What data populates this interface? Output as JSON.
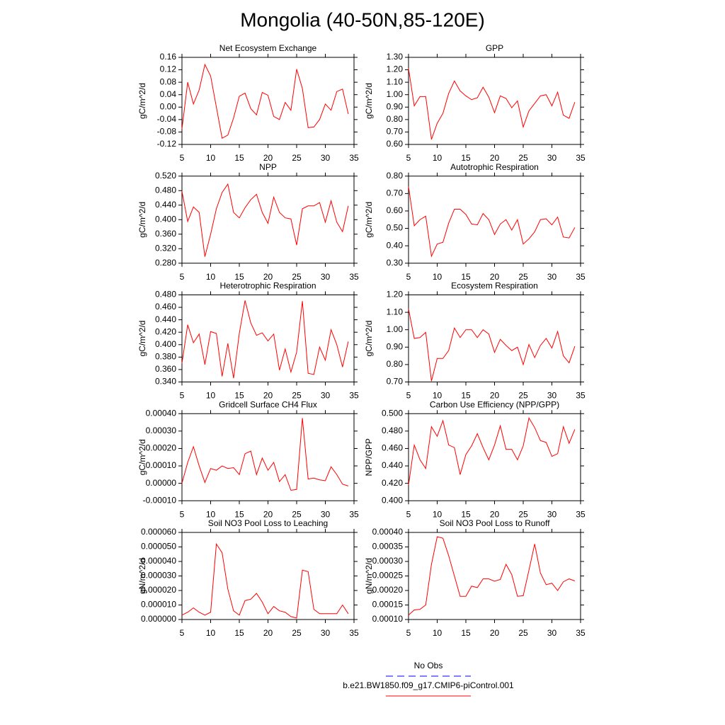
{
  "title": "Mongolia (40-50N,85-120E)",
  "legend": [
    {
      "name": "No Obs",
      "color": "#0000ff",
      "dash": true
    },
    {
      "name": "b.e21.BW1850.f09_g17.CMIP6-piControl.001",
      "color": "#ff0000",
      "dash": false
    }
  ],
  "chart_data": [
    {
      "type": "line",
      "title": "Net Ecosystem Exchange",
      "ylabel": "gC/m^2/d",
      "color": "#ff0000",
      "x": [
        5,
        6,
        7,
        8,
        9,
        10,
        11,
        12,
        13,
        14,
        15,
        16,
        17,
        18,
        19,
        20,
        21,
        22,
        23,
        24,
        25,
        26,
        27,
        28,
        29,
        30,
        31,
        32,
        33,
        34
      ],
      "values": [
        -0.07,
        0.08,
        0.01,
        0.055,
        0.137,
        0.1,
        0.0,
        -0.1,
        -0.09,
        -0.035,
        0.035,
        0.045,
        -0.005,
        -0.025,
        0.047,
        0.038,
        -0.03,
        -0.04,
        0.015,
        -0.01,
        0.122,
        0.06,
        -0.066,
        -0.064,
        -0.04,
        0.01,
        -0.01,
        0.05,
        0.058,
        -0.022
      ],
      "xlim": [
        5,
        35
      ],
      "xticks": [
        5,
        10,
        15,
        20,
        25,
        30,
        35
      ],
      "ylim": [
        -0.12,
        0.16
      ],
      "yticks": [
        -0.12,
        -0.08,
        -0.04,
        {
          "value": 0,
          "label": "0.00"
        },
        0.04,
        0.08,
        0.12,
        0.16
      ]
    },
    {
      "type": "line",
      "title": "GPP",
      "ylabel": "gC/m^2/d",
      "color": "#ff0000",
      "x": [
        5,
        6,
        7,
        8,
        9,
        10,
        11,
        12,
        13,
        14,
        15,
        16,
        17,
        18,
        19,
        20,
        21,
        22,
        23,
        24,
        25,
        26,
        27,
        28,
        29,
        30,
        31,
        32,
        33,
        34
      ],
      "values": [
        1.21,
        0.91,
        0.985,
        0.985,
        0.64,
        0.77,
        0.85,
        1.01,
        1.11,
        1.03,
        0.99,
        0.96,
        0.975,
        1.06,
        0.98,
        0.855,
        0.99,
        0.97,
        0.895,
        0.95,
        0.74,
        0.87,
        0.93,
        0.99,
        1.0,
        0.91,
        1.02,
        0.835,
        0.81,
        0.94
      ],
      "xlim": [
        5,
        35
      ],
      "xticks": [
        5,
        10,
        15,
        20,
        25,
        30,
        35
      ],
      "ylim": [
        0.6,
        1.3
      ],
      "yticks": [
        {
          "value": 0.6,
          "label": "0.60"
        },
        {
          "value": 0.7,
          "label": "0.70"
        },
        {
          "value": 0.8,
          "label": "0.80"
        },
        {
          "value": 0.9,
          "label": "0.90"
        },
        {
          "value": 1,
          "label": "1.00"
        },
        {
          "value": 1.1,
          "label": "1.10"
        },
        {
          "value": 1.2,
          "label": "1.20"
        },
        {
          "value": 1.3,
          "label": "1.30"
        }
      ]
    },
    {
      "type": "line",
      "title": "NPP",
      "ylabel": "gC/m^2/d",
      "color": "#ff0000",
      "x": [
        5,
        6,
        7,
        8,
        9,
        10,
        11,
        12,
        13,
        14,
        15,
        16,
        17,
        18,
        19,
        20,
        21,
        22,
        23,
        24,
        25,
        26,
        27,
        28,
        29,
        30,
        31,
        32,
        33,
        34
      ],
      "values": [
        0.478,
        0.395,
        0.435,
        0.42,
        0.298,
        0.36,
        0.43,
        0.475,
        0.498,
        0.42,
        0.405,
        0.433,
        0.455,
        0.47,
        0.42,
        0.39,
        0.462,
        0.42,
        0.405,
        0.402,
        0.33,
        0.43,
        0.438,
        0.438,
        0.447,
        0.393,
        0.452,
        0.393,
        0.367,
        0.438
      ],
      "xlim": [
        5,
        35
      ],
      "xticks": [
        5,
        10,
        15,
        20,
        25,
        30,
        35
      ],
      "ylim": [
        0.28,
        0.52
      ],
      "yticks": [
        {
          "value": 0.28,
          "label": "0.280"
        },
        {
          "value": 0.32,
          "label": "0.320"
        },
        {
          "value": 0.36,
          "label": "0.360"
        },
        {
          "value": 0.4,
          "label": "0.400"
        },
        {
          "value": 0.44,
          "label": "0.440"
        },
        {
          "value": 0.48,
          "label": "0.480"
        },
        {
          "value": 0.52,
          "label": "0.520"
        }
      ]
    },
    {
      "type": "line",
      "title": "Autotrophic Respiration",
      "ylabel": "gC/m^2/d",
      "color": "#ff0000",
      "x": [
        5,
        6,
        7,
        8,
        9,
        10,
        11,
        12,
        13,
        14,
        15,
        16,
        17,
        18,
        19,
        20,
        21,
        22,
        23,
        24,
        25,
        26,
        27,
        28,
        29,
        30,
        31,
        32,
        33,
        34
      ],
      "values": [
        0.74,
        0.515,
        0.55,
        0.57,
        0.34,
        0.41,
        0.42,
        0.53,
        0.61,
        0.61,
        0.58,
        0.525,
        0.52,
        0.585,
        0.55,
        0.465,
        0.525,
        0.55,
        0.49,
        0.55,
        0.41,
        0.44,
        0.48,
        0.55,
        0.555,
        0.52,
        0.565,
        0.45,
        0.445,
        0.505
      ],
      "xlim": [
        5,
        35
      ],
      "xticks": [
        5,
        10,
        15,
        20,
        25,
        30,
        35
      ],
      "ylim": [
        0.3,
        0.8
      ],
      "yticks": [
        {
          "value": 0.3,
          "label": "0.30"
        },
        {
          "value": 0.4,
          "label": "0.40"
        },
        {
          "value": 0.5,
          "label": "0.50"
        },
        {
          "value": 0.6,
          "label": "0.60"
        },
        {
          "value": 0.7,
          "label": "0.70"
        },
        {
          "value": 0.8,
          "label": "0.80"
        }
      ]
    },
    {
      "type": "line",
      "title": "Heterotrophic Respiration",
      "ylabel": "gC/m^2/d",
      "color": "#ff0000",
      "x": [
        5,
        6,
        7,
        8,
        9,
        10,
        11,
        12,
        13,
        14,
        15,
        16,
        17,
        18,
        19,
        20,
        21,
        22,
        23,
        24,
        25,
        26,
        27,
        28,
        29,
        30,
        31,
        32,
        33,
        34
      ],
      "values": [
        0.37,
        0.432,
        0.403,
        0.417,
        0.368,
        0.421,
        0.418,
        0.349,
        0.402,
        0.346,
        0.418,
        0.471,
        0.435,
        0.415,
        0.419,
        0.406,
        0.417,
        0.359,
        0.393,
        0.356,
        0.388,
        0.47,
        0.354,
        0.352,
        0.396,
        0.375,
        0.424,
        0.4,
        0.364,
        0.405
      ],
      "xlim": [
        5,
        35
      ],
      "xticks": [
        5,
        10,
        15,
        20,
        25,
        30,
        35
      ],
      "ylim": [
        0.34,
        0.48
      ],
      "yticks": [
        {
          "value": 0.34,
          "label": "0.340"
        },
        {
          "value": 0.36,
          "label": "0.360"
        },
        {
          "value": 0.38,
          "label": "0.380"
        },
        {
          "value": 0.4,
          "label": "0.400"
        },
        {
          "value": 0.42,
          "label": "0.420"
        },
        {
          "value": 0.44,
          "label": "0.440"
        },
        {
          "value": 0.46,
          "label": "0.460"
        },
        {
          "value": 0.48,
          "label": "0.480"
        }
      ]
    },
    {
      "type": "line",
      "title": "Ecosystem Respiration",
      "ylabel": "gC/m^2/d",
      "color": "#ff0000",
      "x": [
        5,
        6,
        7,
        8,
        9,
        10,
        11,
        12,
        13,
        14,
        15,
        16,
        17,
        18,
        19,
        20,
        21,
        22,
        23,
        24,
        25,
        26,
        27,
        28,
        29,
        30,
        31,
        32,
        33,
        34
      ],
      "values": [
        1.12,
        0.95,
        0.955,
        0.985,
        0.705,
        0.835,
        0.835,
        0.88,
        1.01,
        0.955,
        1.0,
        1.0,
        0.955,
        1.0,
        0.975,
        0.87,
        0.945,
        0.91,
        0.88,
        0.9,
        0.8,
        0.915,
        0.84,
        0.91,
        0.95,
        0.895,
        0.99,
        0.85,
        0.81,
        0.905
      ],
      "xlim": [
        5,
        35
      ],
      "xticks": [
        5,
        10,
        15,
        20,
        25,
        30,
        35
      ],
      "ylim": [
        0.7,
        1.2
      ],
      "yticks": [
        {
          "value": 0.7,
          "label": "0.70"
        },
        {
          "value": 0.8,
          "label": "0.80"
        },
        {
          "value": 0.9,
          "label": "0.90"
        },
        {
          "value": 1,
          "label": "1.00"
        },
        {
          "value": 1.1,
          "label": "1.10"
        },
        {
          "value": 1.2,
          "label": "1.20"
        }
      ]
    },
    {
      "type": "line",
      "title": "Gridcell Surface CH4 Flux",
      "ylabel": "gC/m^2/d",
      "color": "#ff0000",
      "x": [
        5,
        6,
        7,
        8,
        9,
        10,
        11,
        12,
        13,
        14,
        15,
        16,
        17,
        18,
        19,
        20,
        21,
        22,
        23,
        24,
        25,
        26,
        27,
        28,
        29,
        30,
        31,
        32,
        33,
        34
      ],
      "values": [
        0.0,
        0.00012,
        0.00021,
        0.0001,
        5e-06,
        8.5e-05,
        7.5e-05,
        0.0001,
        8.5e-05,
        9e-05,
        5e-05,
        0.00017,
        0.000185,
        5e-05,
        0.000145,
        7.5e-05,
        0.00012,
        1e-05,
        5e-05,
        -4e-05,
        -3.5e-05,
        0.000375,
        2.5e-05,
        3e-05,
        2e-05,
        1.5e-05,
        9.5e-05,
        5e-05,
        -5e-06,
        -1.5e-05
      ],
      "xlim": [
        5,
        35
      ],
      "xticks": [
        5,
        10,
        15,
        20,
        25,
        30,
        35
      ],
      "ylim": [
        -0.0001,
        0.0004
      ],
      "yticks": [
        {
          "value": -0.0001,
          "label": "-0.00010"
        },
        {
          "value": 0,
          "label": "0.00000"
        },
        {
          "value": 0.0001,
          "label": "0.00010"
        },
        {
          "value": 0.0002,
          "label": "0.00020"
        },
        {
          "value": 0.0003,
          "label": "0.00030"
        },
        {
          "value": 0.0004,
          "label": "0.00040"
        }
      ]
    },
    {
      "type": "line",
      "title": "Carbon Use Efficiency (NPP/GPP)",
      "ylabel": "NPP/GPP",
      "color": "#ff0000",
      "x": [
        5,
        6,
        7,
        8,
        9,
        10,
        11,
        12,
        13,
        14,
        15,
        16,
        17,
        18,
        19,
        20,
        21,
        22,
        23,
        24,
        25,
        26,
        27,
        28,
        29,
        30,
        31,
        32,
        33,
        34
      ],
      "values": [
        0.418,
        0.464,
        0.447,
        0.437,
        0.485,
        0.474,
        0.492,
        0.464,
        0.461,
        0.43,
        0.453,
        0.463,
        0.477,
        0.461,
        0.447,
        0.464,
        0.486,
        0.459,
        0.459,
        0.447,
        0.463,
        0.495,
        0.484,
        0.469,
        0.467,
        0.451,
        0.454,
        0.485,
        0.466,
        0.482
      ],
      "xlim": [
        5,
        35
      ],
      "xticks": [
        5,
        10,
        15,
        20,
        25,
        30,
        35
      ],
      "ylim": [
        0.4,
        0.5
      ],
      "yticks": [
        {
          "value": 0.4,
          "label": "0.400"
        },
        {
          "value": 0.42,
          "label": "0.420"
        },
        {
          "value": 0.44,
          "label": "0.440"
        },
        {
          "value": 0.46,
          "label": "0.460"
        },
        {
          "value": 0.48,
          "label": "0.480"
        },
        {
          "value": 0.5,
          "label": "0.500"
        }
      ]
    },
    {
      "type": "line",
      "title": "Soil NO3 Pool Loss to Leaching",
      "ylabel": "gN/m^2/d",
      "color": "#ff0000",
      "x": [
        5,
        6,
        7,
        8,
        9,
        10,
        11,
        12,
        13,
        14,
        15,
        16,
        17,
        18,
        19,
        20,
        21,
        22,
        23,
        24,
        25,
        26,
        27,
        28,
        29,
        30,
        31,
        32,
        33,
        34
      ],
      "values": [
        3e-06,
        5e-06,
        8e-06,
        5e-06,
        3e-06,
        5e-06,
        5.2e-05,
        4.6e-05,
        2.1e-05,
        6e-06,
        3e-06,
        1.3e-05,
        1.4e-05,
        1.8e-05,
        1.2e-05,
        4e-06,
        9e-06,
        6e-06,
        5e-06,
        2e-06,
        1e-06,
        3.4e-05,
        3.3e-05,
        7e-06,
        4e-06,
        4e-06,
        4e-06,
        4e-06,
        1e-05,
        4e-06
      ],
      "xlim": [
        5,
        35
      ],
      "xticks": [
        5,
        10,
        15,
        20,
        25,
        30,
        35
      ],
      "ylim": [
        0,
        6e-05
      ],
      "yticks": [
        {
          "value": 0,
          "label": "0.000000"
        },
        {
          "value": 1e-05,
          "label": "0.000010"
        },
        {
          "value": 2e-05,
          "label": "0.000020"
        },
        {
          "value": 3e-05,
          "label": "0.000030"
        },
        {
          "value": 4e-05,
          "label": "0.000040"
        },
        {
          "value": 5e-05,
          "label": "0.000050"
        },
        {
          "value": 6e-05,
          "label": "0.000060"
        }
      ]
    },
    {
      "type": "line",
      "title": "Soil NO3 Pool Loss to Runoff",
      "ylabel": "gN/m^2/d",
      "color": "#ff0000",
      "x": [
        5,
        6,
        7,
        8,
        9,
        10,
        11,
        12,
        13,
        14,
        15,
        16,
        17,
        18,
        19,
        20,
        21,
        22,
        23,
        24,
        25,
        26,
        27,
        28,
        29,
        30,
        31,
        32,
        33,
        34
      ],
      "values": [
        0.000115,
        0.000133,
        0.000135,
        0.00015,
        0.00029,
        0.000385,
        0.00038,
        0.00032,
        0.00025,
        0.00018,
        0.00018,
        0.000215,
        0.00021,
        0.00024,
        0.00024,
        0.000232,
        0.000238,
        0.00029,
        0.000255,
        0.00018,
        0.000182,
        0.00027,
        0.00036,
        0.00026,
        0.00022,
        0.000225,
        0.0002,
        0.00023,
        0.00024,
        0.000233
      ],
      "xlim": [
        5,
        35
      ],
      "xticks": [
        5,
        10,
        15,
        20,
        25,
        30,
        35
      ],
      "ylim": [
        0.0001,
        0.0004
      ],
      "yticks": [
        {
          "value": 0.0001,
          "label": "0.00010"
        },
        {
          "value": 0.00015,
          "label": "0.00015"
        },
        {
          "value": 0.0002,
          "label": "0.00020"
        },
        {
          "value": 0.00025,
          "label": "0.00025"
        },
        {
          "value": 0.0003,
          "label": "0.00030"
        },
        {
          "value": 0.00035,
          "label": "0.00035"
        },
        {
          "value": 0.0004,
          "label": "0.00040"
        }
      ]
    }
  ]
}
